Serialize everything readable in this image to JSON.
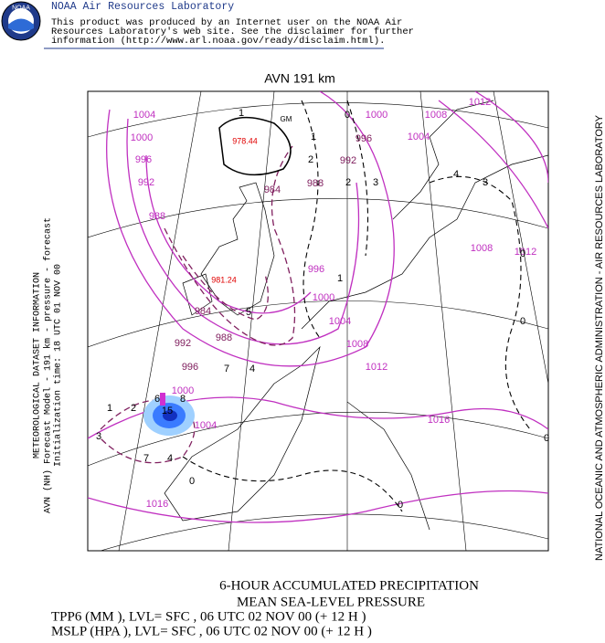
{
  "header": {
    "logo": "NOAA",
    "title": "NOAA Air Resources Laboratory",
    "lines": [
      "This product was produced by an Internet user on the NOAA Air",
      "Resources Laboratory's web site.  See the disclaimer for further",
      "information (http://www.arl.noaa.gov/ready/disclaim.html)."
    ]
  },
  "map": {
    "title": "AVN 191 km",
    "left_info": [
      "METEOROLOGICAL DATASET INFORMATION",
      "AVN (NH) Forecast Model - 191 km - pressure - forecast",
      "Initialization time: 18 UTC 01 NOV 00"
    ],
    "right_info": "NATIONAL OCEANIC AND ATMOSPHERIC ADMINISTRATION  -  AIR RESOURCES LABORATORY",
    "pressure_labels": {
      "color": "#c030c0",
      "texts": [
        "1004",
        "1000",
        "996",
        "992",
        "988",
        "1000",
        "1008",
        "1012",
        "1004",
        "1008",
        "1012",
        "996",
        "1000",
        "1004",
        "1008",
        "1012",
        "1016",
        "1016",
        "1000",
        "1004"
      ]
    },
    "trough_labels": {
      "color": "#80205f",
      "texts": [
        "996",
        "992",
        "988",
        "984",
        "984",
        "988",
        "992",
        "996"
      ]
    },
    "precip_labels": {
      "color": "#000000",
      "texts": [
        "1",
        "0",
        "1",
        "2",
        "2",
        "3",
        "4",
        "3",
        "0",
        "0",
        "1",
        "5",
        "7",
        "4",
        "1",
        "2",
        "6",
        "8",
        "15",
        "3",
        "7",
        "4",
        "0",
        "0",
        "0",
        "GM"
      ]
    },
    "min_labels": {
      "color": "#e00000",
      "texts": [
        "978.44",
        "981.24"
      ]
    }
  },
  "footer": {
    "lines": [
      "6-HOUR ACCUMULATED PRECIPITATION",
      "MEAN SEA-LEVEL PRESSURE",
      "TPP6 (MM  ),  LVL= SFC , 06 UTC 02 NOV 00 (+ 12 H )",
      "MSLP (HPA ),  LVL= SFC , 06 UTC 02 NOV 00 (+ 12 H )"
    ]
  }
}
